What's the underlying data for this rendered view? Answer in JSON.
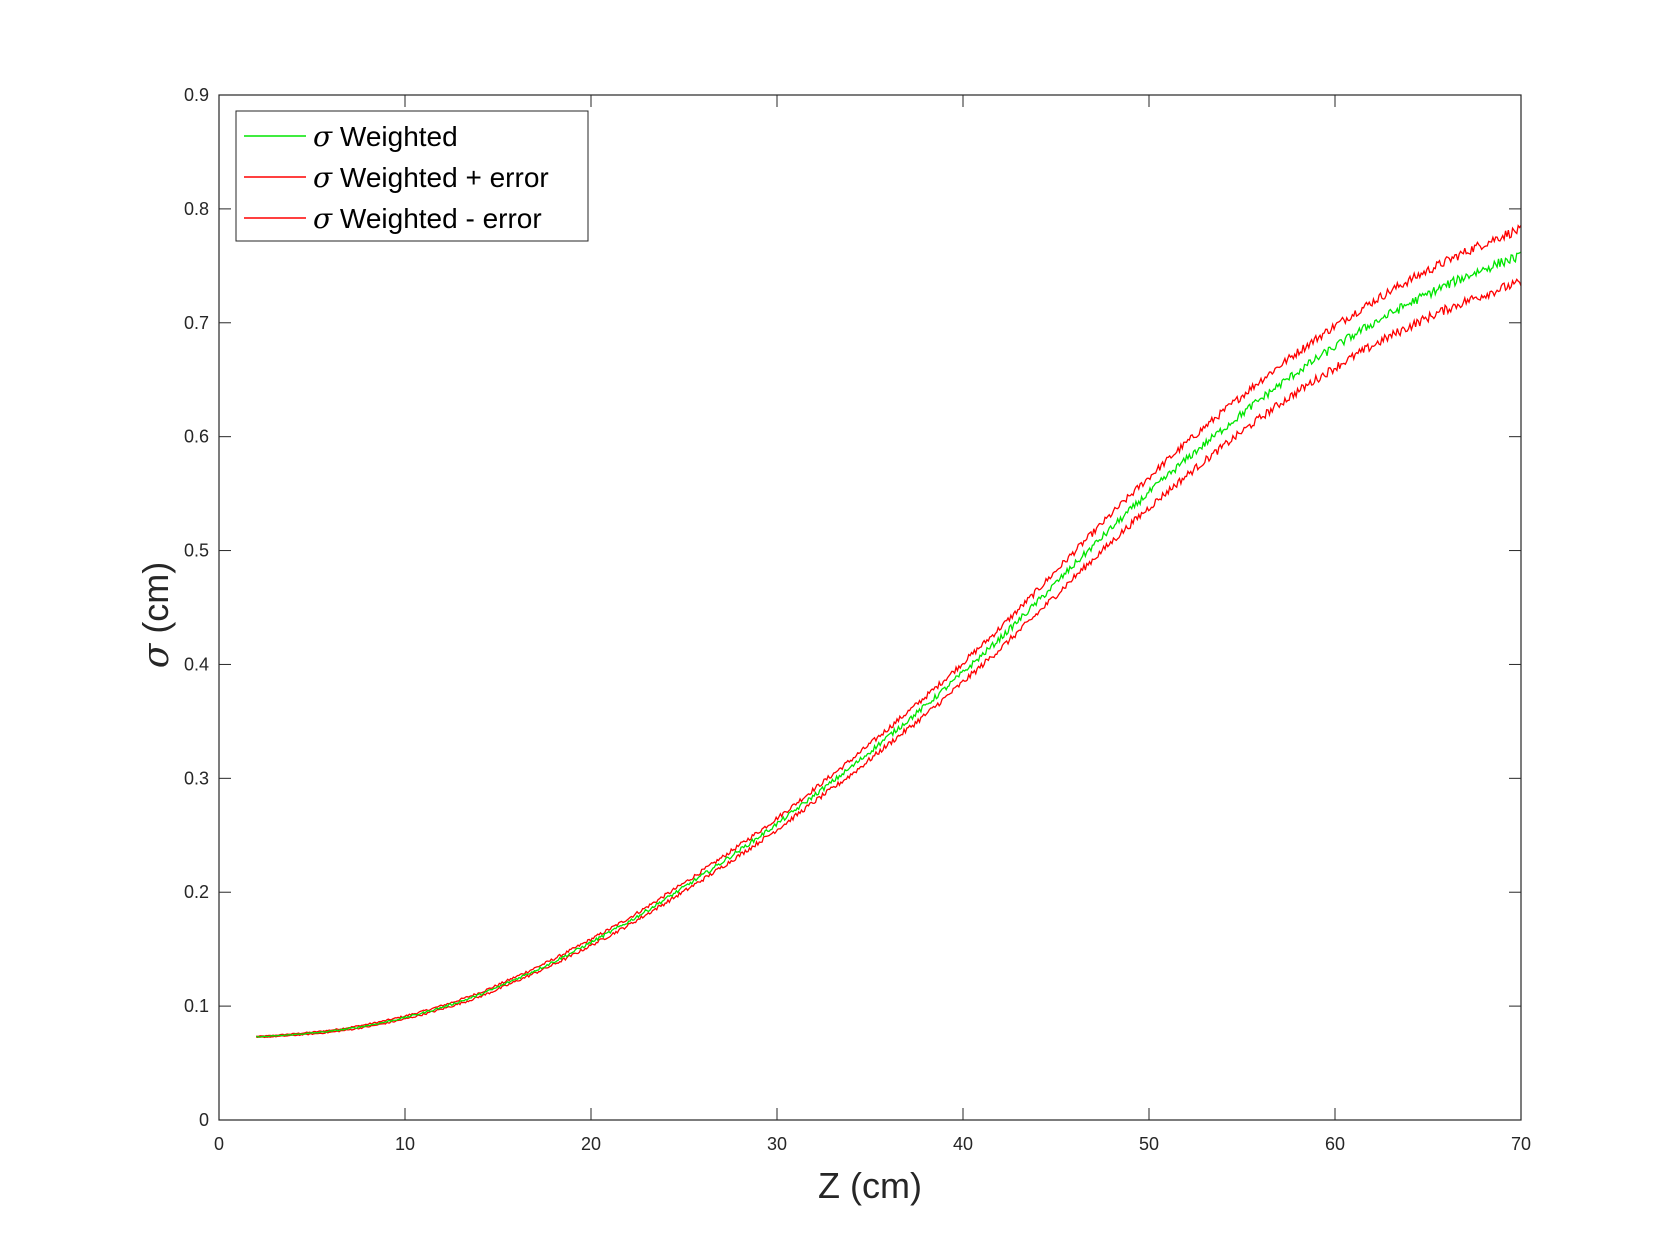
{
  "chart_data": {
    "type": "line",
    "xlabel": "Z (cm)",
    "ylabel_symbol": "σ",
    "ylabel_text": " (cm)",
    "xlim": [
      0,
      70
    ],
    "ylim": [
      0,
      0.9
    ],
    "xticks": [
      0,
      10,
      20,
      30,
      40,
      50,
      60,
      70
    ],
    "xtick_labels": [
      "0",
      "10",
      "20",
      "30",
      "40",
      "50",
      "60",
      "70"
    ],
    "yticks": [
      0,
      0.1,
      0.2,
      0.3,
      0.4,
      0.5,
      0.6,
      0.7,
      0.8,
      0.9
    ],
    "ytick_labels": [
      "0",
      "0.1",
      "0.2",
      "0.3",
      "0.4",
      "0.5",
      "0.6",
      "0.7",
      "0.8",
      "0.9"
    ],
    "grid": false,
    "legend_position": "top-left",
    "series": [
      {
        "name": "σ Weighted",
        "legend_symbol": "σ",
        "legend_text": " Weighted",
        "color": "#00e600",
        "x": [
          2,
          4,
          6,
          8,
          10,
          12,
          14,
          16,
          18,
          20,
          22,
          24,
          26,
          28,
          30,
          32,
          34,
          36,
          38,
          40,
          42,
          44,
          46,
          48,
          50,
          52,
          54,
          56,
          58,
          60,
          62,
          64,
          66,
          68,
          70
        ],
        "y": [
          0.073,
          0.075,
          0.078,
          0.083,
          0.09,
          0.099,
          0.11,
          0.124,
          0.139,
          0.156,
          0.174,
          0.194,
          0.215,
          0.237,
          0.26,
          0.285,
          0.31,
          0.337,
          0.364,
          0.393,
          0.423,
          0.455,
          0.488,
          0.52,
          0.551,
          0.58,
          0.607,
          0.633,
          0.657,
          0.679,
          0.699,
          0.717,
          0.733,
          0.747,
          0.758
        ]
      },
      {
        "name": "σ Weighted + error",
        "legend_symbol": "σ",
        "legend_text": " Weighted + error",
        "color": "#ff0000",
        "x": [
          2,
          4,
          6,
          8,
          10,
          12,
          14,
          16,
          18,
          20,
          22,
          24,
          26,
          28,
          30,
          32,
          34,
          36,
          38,
          40,
          42,
          44,
          46,
          48,
          50,
          52,
          54,
          56,
          58,
          60,
          62,
          64,
          66,
          68,
          70
        ],
        "y": [
          0.0735,
          0.0757,
          0.0789,
          0.0841,
          0.0913,
          0.1005,
          0.1118,
          0.126,
          0.1414,
          0.1587,
          0.177,
          0.1974,
          0.2189,
          0.2414,
          0.265,
          0.2906,
          0.3165,
          0.344,
          0.3719,
          0.4015,
          0.4322,
          0.4652,
          0.4992,
          0.5323,
          0.5643,
          0.5944,
          0.6223,
          0.6493,
          0.6743,
          0.6973,
          0.7183,
          0.7373,
          0.7541,
          0.7694,
          0.7814
        ]
      },
      {
        "name": "σ Weighted - error",
        "legend_symbol": "σ",
        "legend_text": " Weighted - error",
        "color": "#ff0000",
        "x": [
          2,
          4,
          6,
          8,
          10,
          12,
          14,
          16,
          18,
          20,
          22,
          24,
          26,
          28,
          30,
          32,
          34,
          36,
          38,
          40,
          42,
          44,
          46,
          48,
          50,
          52,
          54,
          56,
          58,
          60,
          62,
          64,
          66,
          68,
          70
        ],
        "y": [
          0.0725,
          0.0743,
          0.0771,
          0.0819,
          0.0887,
          0.0975,
          0.1082,
          0.122,
          0.1366,
          0.1533,
          0.171,
          0.1906,
          0.2111,
          0.2326,
          0.255,
          0.2794,
          0.3035,
          0.33,
          0.3561,
          0.3845,
          0.4138,
          0.4448,
          0.4768,
          0.5077,
          0.5377,
          0.5656,
          0.5917,
          0.6167,
          0.6397,
          0.6607,
          0.6797,
          0.6967,
          0.7119,
          0.7246,
          0.7346
        ]
      }
    ]
  }
}
